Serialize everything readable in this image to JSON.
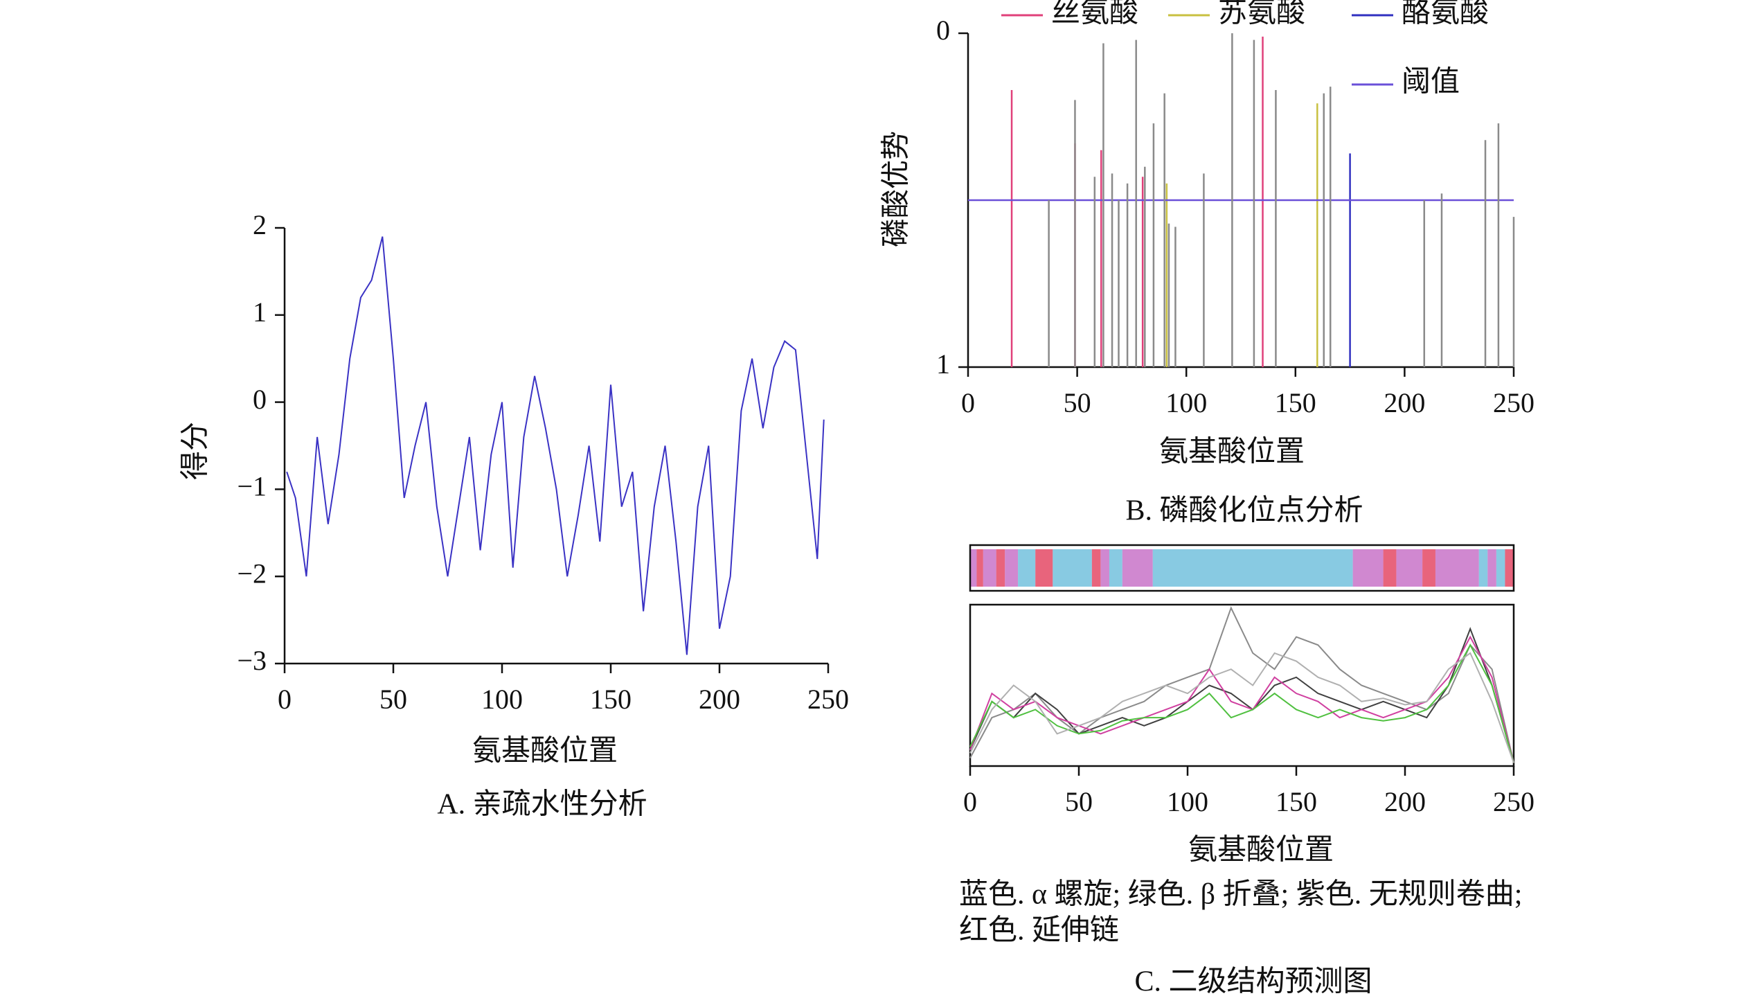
{
  "chart_data": [
    {
      "type": "line",
      "title": "A. 亲疏水性分析",
      "xlabel": "氨基酸位置",
      "ylabel": "得分",
      "color": "#3a32c4",
      "x": [
        1,
        5,
        10,
        15,
        20,
        25,
        30,
        35,
        40,
        45,
        50,
        55,
        60,
        65,
        70,
        75,
        80,
        85,
        90,
        95,
        100,
        105,
        110,
        115,
        120,
        125,
        130,
        135,
        140,
        145,
        150,
        155,
        160,
        165,
        170,
        175,
        180,
        185,
        190,
        195,
        200,
        205,
        210,
        215,
        220,
        225,
        230,
        235,
        240,
        245,
        248
      ],
      "values": [
        -0.8,
        -1.1,
        -2.0,
        -0.4,
        -1.4,
        -0.6,
        0.5,
        1.2,
        1.4,
        1.9,
        0.5,
        -1.1,
        -0.5,
        0.0,
        -1.2,
        -2.0,
        -1.2,
        -0.4,
        -1.7,
        -0.6,
        0.0,
        -1.9,
        -0.4,
        0.3,
        -0.3,
        -1.0,
        -2.0,
        -1.3,
        -0.5,
        -1.6,
        0.2,
        -1.2,
        -0.8,
        -2.4,
        -1.2,
        -0.5,
        -1.6,
        -2.9,
        -1.2,
        -0.5,
        -2.6,
        -2.0,
        -0.1,
        0.5,
        -0.3,
        0.4,
        0.7,
        0.6,
        -0.6,
        -1.8,
        -0.2
      ],
      "xlim": [
        0,
        250
      ],
      "xticks": [
        0,
        50,
        100,
        150,
        200,
        250
      ],
      "ylim": [
        -3,
        2
      ],
      "yticks": [
        {
          "value": -3,
          "label": "−3"
        },
        {
          "value": -2,
          "label": "−2"
        },
        {
          "value": -1,
          "label": "−1"
        },
        0,
        1,
        2
      ]
    },
    {
      "type": "stem",
      "title": "B. 磷酸化位点分析",
      "xlabel": "氨基酸位置",
      "ylabel": "磷酸优势",
      "xlim": [
        0,
        250
      ],
      "xticks": [
        0,
        50,
        100,
        150,
        200,
        250
      ],
      "ylim": [
        1,
        0
      ],
      "yticks": [
        0,
        1
      ],
      "series": [
        {
          "name": "丝氨酸",
          "color": "#e0407a",
          "x": [
            20,
            49,
            61,
            80,
            135
          ],
          "values": [
            0.17,
            0.33,
            0.35,
            0.43,
            0.01
          ]
        },
        {
          "name": "苏氨酸",
          "color": "#c8c040",
          "x": [
            91,
            160
          ],
          "values": [
            0.45,
            0.21
          ]
        },
        {
          "name": "酪氨酸",
          "color": "#3030c0",
          "x": [
            175
          ],
          "values": [
            0.36
          ]
        },
        {
          "name": "阈值",
          "color": "#6a50d8",
          "x": [
            0,
            250
          ],
          "values": [
            0.5,
            0.5
          ]
        },
        {
          "color": "#8a8a8a",
          "x": [
            37,
            49,
            58,
            62,
            66,
            69,
            73,
            77,
            81,
            85,
            90,
            92,
            95,
            108,
            121,
            131,
            141,
            163,
            166,
            209,
            217,
            237,
            243,
            250
          ],
          "values": [
            0.5,
            0.2,
            0.43,
            0.03,
            0.42,
            0.5,
            0.45,
            0.02,
            0.4,
            0.27,
            0.18,
            0.57,
            0.58,
            0.42,
            0.0,
            0.02,
            0.17,
            0.18,
            0.16,
            0.5,
            0.48,
            0.32,
            0.27,
            0.55
          ]
        }
      ]
    },
    {
      "type": "line",
      "title": "C. 二级结构预测图",
      "xlabel": "氨基酸位置",
      "note": [
        "蓝色. α 螺旋; 绿色. β 折叠; 紫色. 无规则卷曲;",
        "红色. 延伸链"
      ],
      "xlim": [
        0,
        250
      ],
      "xticks": [
        0,
        50,
        100,
        150,
        200,
        250
      ],
      "ylim": [
        0,
        1
      ],
      "segments": [
        {
          "start": 0,
          "end": 3,
          "color": "#c060c0"
        },
        {
          "start": 3,
          "end": 6,
          "color": "#e03050"
        },
        {
          "start": 6,
          "end": 12,
          "color": "#c060c0"
        },
        {
          "start": 12,
          "end": 16,
          "color": "#e03050"
        },
        {
          "start": 16,
          "end": 22,
          "color": "#c060c0"
        },
        {
          "start": 22,
          "end": 30,
          "color": "#60b8d8"
        },
        {
          "start": 30,
          "end": 38,
          "color": "#e03050"
        },
        {
          "start": 38,
          "end": 56,
          "color": "#60b8d8"
        },
        {
          "start": 56,
          "end": 60,
          "color": "#e03050"
        },
        {
          "start": 60,
          "end": 64,
          "color": "#c060c0"
        },
        {
          "start": 64,
          "end": 70,
          "color": "#60b8d8"
        },
        {
          "start": 70,
          "end": 84,
          "color": "#c060c0"
        },
        {
          "start": 84,
          "end": 176,
          "color": "#60b8d8"
        },
        {
          "start": 176,
          "end": 190,
          "color": "#c060c0"
        },
        {
          "start": 190,
          "end": 196,
          "color": "#e03050"
        },
        {
          "start": 196,
          "end": 208,
          "color": "#c060c0"
        },
        {
          "start": 208,
          "end": 214,
          "color": "#e03050"
        },
        {
          "start": 214,
          "end": 234,
          "color": "#c060c0"
        },
        {
          "start": 234,
          "end": 238,
          "color": "#60b8d8"
        },
        {
          "start": 238,
          "end": 242,
          "color": "#c060c0"
        },
        {
          "start": 242,
          "end": 246,
          "color": "#60b8d8"
        },
        {
          "start": 246,
          "end": 250,
          "color": "#e03050"
        }
      ],
      "series": [
        {
          "color": "#8a8a8a",
          "x": [
            0,
            10,
            20,
            30,
            40,
            50,
            60,
            70,
            80,
            90,
            100,
            110,
            120,
            130,
            140,
            150,
            160,
            170,
            180,
            190,
            200,
            210,
            220,
            230,
            240,
            250
          ],
          "values": [
            0.05,
            0.3,
            0.35,
            0.45,
            0.3,
            0.2,
            0.3,
            0.35,
            0.4,
            0.5,
            0.55,
            0.6,
            0.98,
            0.7,
            0.6,
            0.8,
            0.75,
            0.6,
            0.5,
            0.45,
            0.4,
            0.35,
            0.45,
            0.75,
            0.6,
            0.02
          ]
        },
        {
          "color": "#404040",
          "x": [
            0,
            10,
            20,
            30,
            40,
            50,
            60,
            70,
            80,
            90,
            100,
            110,
            120,
            130,
            140,
            150,
            160,
            170,
            180,
            190,
            200,
            210,
            220,
            230,
            240,
            250
          ],
          "values": [
            0.1,
            0.4,
            0.3,
            0.45,
            0.35,
            0.2,
            0.25,
            0.3,
            0.25,
            0.3,
            0.4,
            0.5,
            0.45,
            0.35,
            0.5,
            0.55,
            0.45,
            0.4,
            0.35,
            0.4,
            0.35,
            0.3,
            0.5,
            0.85,
            0.5,
            0.02
          ]
        },
        {
          "color": "#d040a0",
          "x": [
            0,
            10,
            20,
            30,
            40,
            50,
            60,
            70,
            80,
            90,
            100,
            110,
            120,
            130,
            140,
            150,
            160,
            170,
            180,
            190,
            200,
            210,
            220,
            230,
            240,
            250
          ],
          "values": [
            0.1,
            0.45,
            0.35,
            0.4,
            0.3,
            0.25,
            0.2,
            0.25,
            0.3,
            0.35,
            0.4,
            0.6,
            0.4,
            0.35,
            0.55,
            0.45,
            0.4,
            0.3,
            0.35,
            0.3,
            0.35,
            0.4,
            0.55,
            0.8,
            0.55,
            0.02
          ]
        },
        {
          "color": "#50c040",
          "x": [
            0,
            10,
            20,
            30,
            40,
            50,
            60,
            70,
            80,
            90,
            100,
            110,
            120,
            130,
            140,
            150,
            160,
            170,
            180,
            190,
            200,
            210,
            220,
            230,
            240,
            250
          ],
          "values": [
            0.12,
            0.4,
            0.3,
            0.35,
            0.25,
            0.2,
            0.22,
            0.28,
            0.3,
            0.3,
            0.35,
            0.45,
            0.3,
            0.35,
            0.45,
            0.35,
            0.3,
            0.35,
            0.3,
            0.28,
            0.3,
            0.35,
            0.5,
            0.75,
            0.5,
            0.02
          ]
        },
        {
          "color": "#b0b0b0",
          "x": [
            0,
            10,
            20,
            30,
            40,
            50,
            60,
            70,
            80,
            90,
            100,
            110,
            120,
            130,
            140,
            150,
            160,
            170,
            180,
            190,
            200,
            210,
            220,
            230,
            240,
            250
          ],
          "values": [
            0.08,
            0.35,
            0.5,
            0.4,
            0.2,
            0.25,
            0.3,
            0.4,
            0.45,
            0.5,
            0.45,
            0.55,
            0.6,
            0.5,
            0.7,
            0.65,
            0.55,
            0.5,
            0.4,
            0.42,
            0.38,
            0.4,
            0.6,
            0.7,
            0.4,
            0.02
          ]
        }
      ]
    }
  ]
}
